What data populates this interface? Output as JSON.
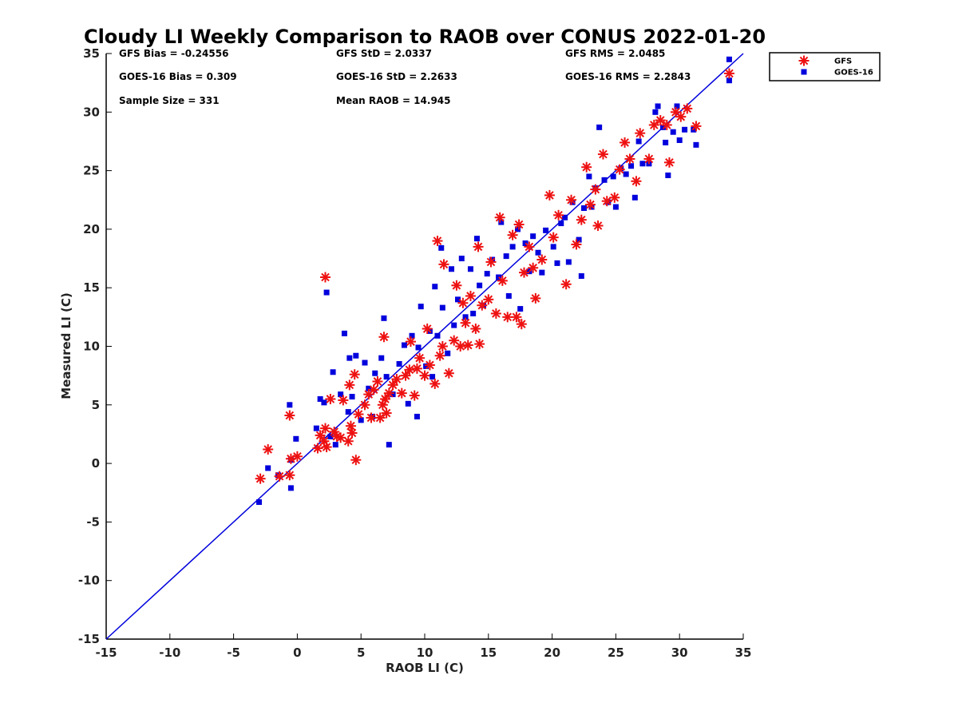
{
  "chart_data": {
    "type": "scatter",
    "title": "Cloudy LI Weekly Comparison to RAOB over CONUS 2022-01-20",
    "xlabel": "RAOB LI (C)",
    "ylabel": "Measured LI (C)",
    "xlim": [
      -15,
      35
    ],
    "ylim": [
      -15,
      35
    ],
    "xticks": [
      -15,
      -10,
      -5,
      0,
      5,
      10,
      15,
      20,
      25,
      30,
      35
    ],
    "yticks": [
      -15,
      -10,
      -5,
      0,
      5,
      10,
      15,
      20,
      25,
      30,
      35
    ],
    "grid": false,
    "legend_position": "outside top-right",
    "reference_line": {
      "x": [
        -15,
        35
      ],
      "y": [
        -15,
        35
      ],
      "color": "#0000dd"
    },
    "stats": [
      [
        "GFS Bias = -0.24556",
        "GFS StD = 2.0337",
        "GFS RMS = 2.0485"
      ],
      [
        "GOES-16 Bias = 0.309",
        "GOES-16 StD = 2.2633",
        "GOES-16 RMS = 2.2843"
      ],
      [
        "Sample Size = 331",
        "Mean RAOB = 14.945",
        ""
      ]
    ],
    "series": [
      {
        "name": "GFS",
        "color": "#ee1111",
        "marker": "asterisk",
        "points": [
          [
            -2.9,
            -1.3
          ],
          [
            -2.3,
            1.2
          ],
          [
            -1.4,
            -1.1
          ],
          [
            -0.6,
            -1.0
          ],
          [
            -0.6,
            4.1
          ],
          [
            -0.5,
            0.4
          ],
          [
            0.0,
            0.6
          ],
          [
            1.6,
            1.3
          ],
          [
            1.8,
            2.4
          ],
          [
            2.1,
            1.9
          ],
          [
            2.2,
            3.0
          ],
          [
            2.2,
            15.9
          ],
          [
            2.3,
            1.4
          ],
          [
            2.6,
            5.5
          ],
          [
            2.9,
            2.7
          ],
          [
            3.1,
            2.3
          ],
          [
            3.4,
            2.2
          ],
          [
            3.6,
            5.4
          ],
          [
            4.0,
            1.9
          ],
          [
            4.1,
            6.7
          ],
          [
            4.2,
            3.2
          ],
          [
            4.3,
            2.6
          ],
          [
            4.5,
            7.6
          ],
          [
            4.6,
            0.3
          ],
          [
            4.8,
            4.2
          ],
          [
            5.3,
            5.0
          ],
          [
            5.6,
            5.9
          ],
          [
            5.8,
            3.9
          ],
          [
            6.0,
            6.3
          ],
          [
            6.3,
            7.0
          ],
          [
            6.5,
            3.9
          ],
          [
            6.7,
            5.0
          ],
          [
            6.8,
            10.8
          ],
          [
            6.9,
            5.5
          ],
          [
            7.0,
            4.3
          ],
          [
            7.2,
            6.0
          ],
          [
            7.5,
            6.7
          ],
          [
            7.8,
            7.2
          ],
          [
            8.2,
            6.0
          ],
          [
            8.5,
            7.5
          ],
          [
            8.8,
            8.0
          ],
          [
            8.9,
            10.4
          ],
          [
            9.2,
            5.8
          ],
          [
            9.4,
            8.1
          ],
          [
            9.6,
            9.0
          ],
          [
            10.0,
            7.5
          ],
          [
            10.2,
            11.5
          ],
          [
            10.4,
            8.4
          ],
          [
            10.8,
            6.8
          ],
          [
            11.0,
            19.0
          ],
          [
            11.2,
            9.2
          ],
          [
            11.4,
            10.0
          ],
          [
            11.5,
            17.0
          ],
          [
            11.9,
            7.7
          ],
          [
            12.3,
            10.5
          ],
          [
            12.5,
            15.2
          ],
          [
            12.8,
            10.0
          ],
          [
            13.0,
            13.7
          ],
          [
            13.2,
            12.0
          ],
          [
            13.4,
            10.1
          ],
          [
            13.6,
            14.3
          ],
          [
            14.0,
            11.5
          ],
          [
            14.2,
            18.5
          ],
          [
            14.3,
            10.2
          ],
          [
            14.5,
            13.5
          ],
          [
            15.0,
            14.0
          ],
          [
            15.2,
            17.2
          ],
          [
            15.6,
            12.8
          ],
          [
            15.9,
            21.0
          ],
          [
            16.1,
            15.6
          ],
          [
            16.5,
            12.5
          ],
          [
            16.9,
            19.5
          ],
          [
            17.2,
            12.5
          ],
          [
            17.4,
            20.4
          ],
          [
            17.6,
            11.9
          ],
          [
            17.8,
            16.3
          ],
          [
            18.2,
            18.5
          ],
          [
            18.5,
            16.7
          ],
          [
            18.7,
            14.1
          ],
          [
            19.2,
            17.4
          ],
          [
            19.8,
            22.9
          ],
          [
            20.1,
            19.3
          ],
          [
            20.5,
            21.2
          ],
          [
            21.1,
            15.3
          ],
          [
            21.5,
            22.5
          ],
          [
            21.9,
            18.7
          ],
          [
            22.3,
            20.8
          ],
          [
            22.7,
            25.3
          ],
          [
            23.0,
            22.1
          ],
          [
            23.4,
            23.4
          ],
          [
            23.6,
            20.3
          ],
          [
            24.0,
            26.4
          ],
          [
            24.3,
            22.4
          ],
          [
            24.9,
            22.7
          ],
          [
            25.3,
            25.1
          ],
          [
            25.7,
            27.4
          ],
          [
            26.1,
            26.0
          ],
          [
            26.6,
            24.1
          ],
          [
            26.9,
            28.2
          ],
          [
            27.6,
            26.0
          ],
          [
            28.0,
            28.9
          ],
          [
            28.5,
            29.3
          ],
          [
            29.0,
            28.9
          ],
          [
            29.2,
            25.7
          ],
          [
            29.7,
            30.0
          ],
          [
            30.1,
            29.6
          ],
          [
            30.6,
            30.3
          ],
          [
            31.3,
            28.8
          ],
          [
            33.9,
            33.3
          ]
        ]
      },
      {
        "name": "GOES-16",
        "color": "#0000dd",
        "marker": "square",
        "points": [
          [
            -3.0,
            -3.3
          ],
          [
            -2.3,
            -0.4
          ],
          [
            -1.5,
            -1.0
          ],
          [
            -0.5,
            -2.1
          ],
          [
            -0.6,
            5.0
          ],
          [
            -0.5,
            0.3
          ],
          [
            -0.1,
            2.1
          ],
          [
            1.5,
            3.0
          ],
          [
            1.8,
            5.5
          ],
          [
            2.1,
            5.2
          ],
          [
            2.3,
            14.6
          ],
          [
            2.6,
            2.3
          ],
          [
            2.8,
            7.8
          ],
          [
            3.0,
            1.6
          ],
          [
            3.4,
            5.9
          ],
          [
            3.7,
            11.1
          ],
          [
            4.0,
            4.4
          ],
          [
            4.1,
            9.0
          ],
          [
            4.3,
            5.7
          ],
          [
            4.6,
            9.2
          ],
          [
            5.0,
            3.7
          ],
          [
            5.3,
            8.6
          ],
          [
            5.6,
            6.4
          ],
          [
            5.9,
            4.0
          ],
          [
            6.1,
            7.7
          ],
          [
            6.6,
            9.0
          ],
          [
            6.8,
            12.4
          ],
          [
            7.0,
            7.4
          ],
          [
            7.2,
            1.6
          ],
          [
            7.5,
            5.9
          ],
          [
            8.0,
            8.5
          ],
          [
            8.4,
            10.1
          ],
          [
            8.7,
            5.1
          ],
          [
            9.0,
            10.9
          ],
          [
            9.4,
            4.0
          ],
          [
            9.5,
            9.9
          ],
          [
            9.7,
            13.4
          ],
          [
            10.1,
            8.3
          ],
          [
            10.4,
            11.3
          ],
          [
            10.6,
            7.4
          ],
          [
            10.8,
            15.1
          ],
          [
            11.0,
            10.9
          ],
          [
            11.3,
            18.4
          ],
          [
            11.4,
            13.3
          ],
          [
            11.8,
            9.4
          ],
          [
            12.1,
            16.6
          ],
          [
            12.3,
            11.8
          ],
          [
            12.6,
            14.0
          ],
          [
            12.9,
            17.5
          ],
          [
            13.2,
            12.5
          ],
          [
            13.6,
            16.6
          ],
          [
            13.8,
            12.8
          ],
          [
            14.1,
            19.2
          ],
          [
            14.3,
            15.2
          ],
          [
            14.6,
            13.5
          ],
          [
            14.9,
            16.2
          ],
          [
            15.3,
            17.4
          ],
          [
            15.8,
            15.9
          ],
          [
            16.0,
            20.6
          ],
          [
            16.4,
            17.7
          ],
          [
            16.6,
            14.3
          ],
          [
            16.9,
            18.5
          ],
          [
            17.3,
            20.0
          ],
          [
            17.5,
            13.2
          ],
          [
            17.9,
            18.8
          ],
          [
            18.2,
            16.4
          ],
          [
            18.5,
            19.4
          ],
          [
            18.9,
            18.0
          ],
          [
            19.2,
            16.3
          ],
          [
            19.5,
            19.9
          ],
          [
            20.1,
            18.5
          ],
          [
            20.4,
            17.1
          ],
          [
            20.7,
            20.5
          ],
          [
            21.0,
            21.0
          ],
          [
            21.3,
            17.2
          ],
          [
            21.6,
            22.3
          ],
          [
            22.1,
            19.1
          ],
          [
            22.3,
            16.0
          ],
          [
            22.5,
            21.8
          ],
          [
            22.9,
            24.5
          ],
          [
            23.1,
            21.9
          ],
          [
            23.4,
            23.5
          ],
          [
            23.7,
            28.7
          ],
          [
            24.1,
            24.2
          ],
          [
            24.4,
            22.3
          ],
          [
            24.8,
            24.5
          ],
          [
            25.0,
            21.9
          ],
          [
            25.4,
            25.2
          ],
          [
            25.8,
            24.7
          ],
          [
            26.2,
            25.4
          ],
          [
            26.5,
            22.7
          ],
          [
            26.8,
            27.5
          ],
          [
            27.1,
            25.6
          ],
          [
            27.6,
            25.6
          ],
          [
            28.1,
            30.0
          ],
          [
            28.3,
            30.5
          ],
          [
            28.7,
            28.7
          ],
          [
            28.9,
            27.4
          ],
          [
            29.1,
            24.6
          ],
          [
            29.5,
            28.3
          ],
          [
            29.8,
            30.5
          ],
          [
            30.0,
            27.6
          ],
          [
            30.4,
            28.5
          ],
          [
            31.1,
            28.5
          ],
          [
            31.3,
            27.2
          ],
          [
            33.9,
            32.7
          ],
          [
            33.9,
            34.5
          ]
        ]
      }
    ]
  }
}
